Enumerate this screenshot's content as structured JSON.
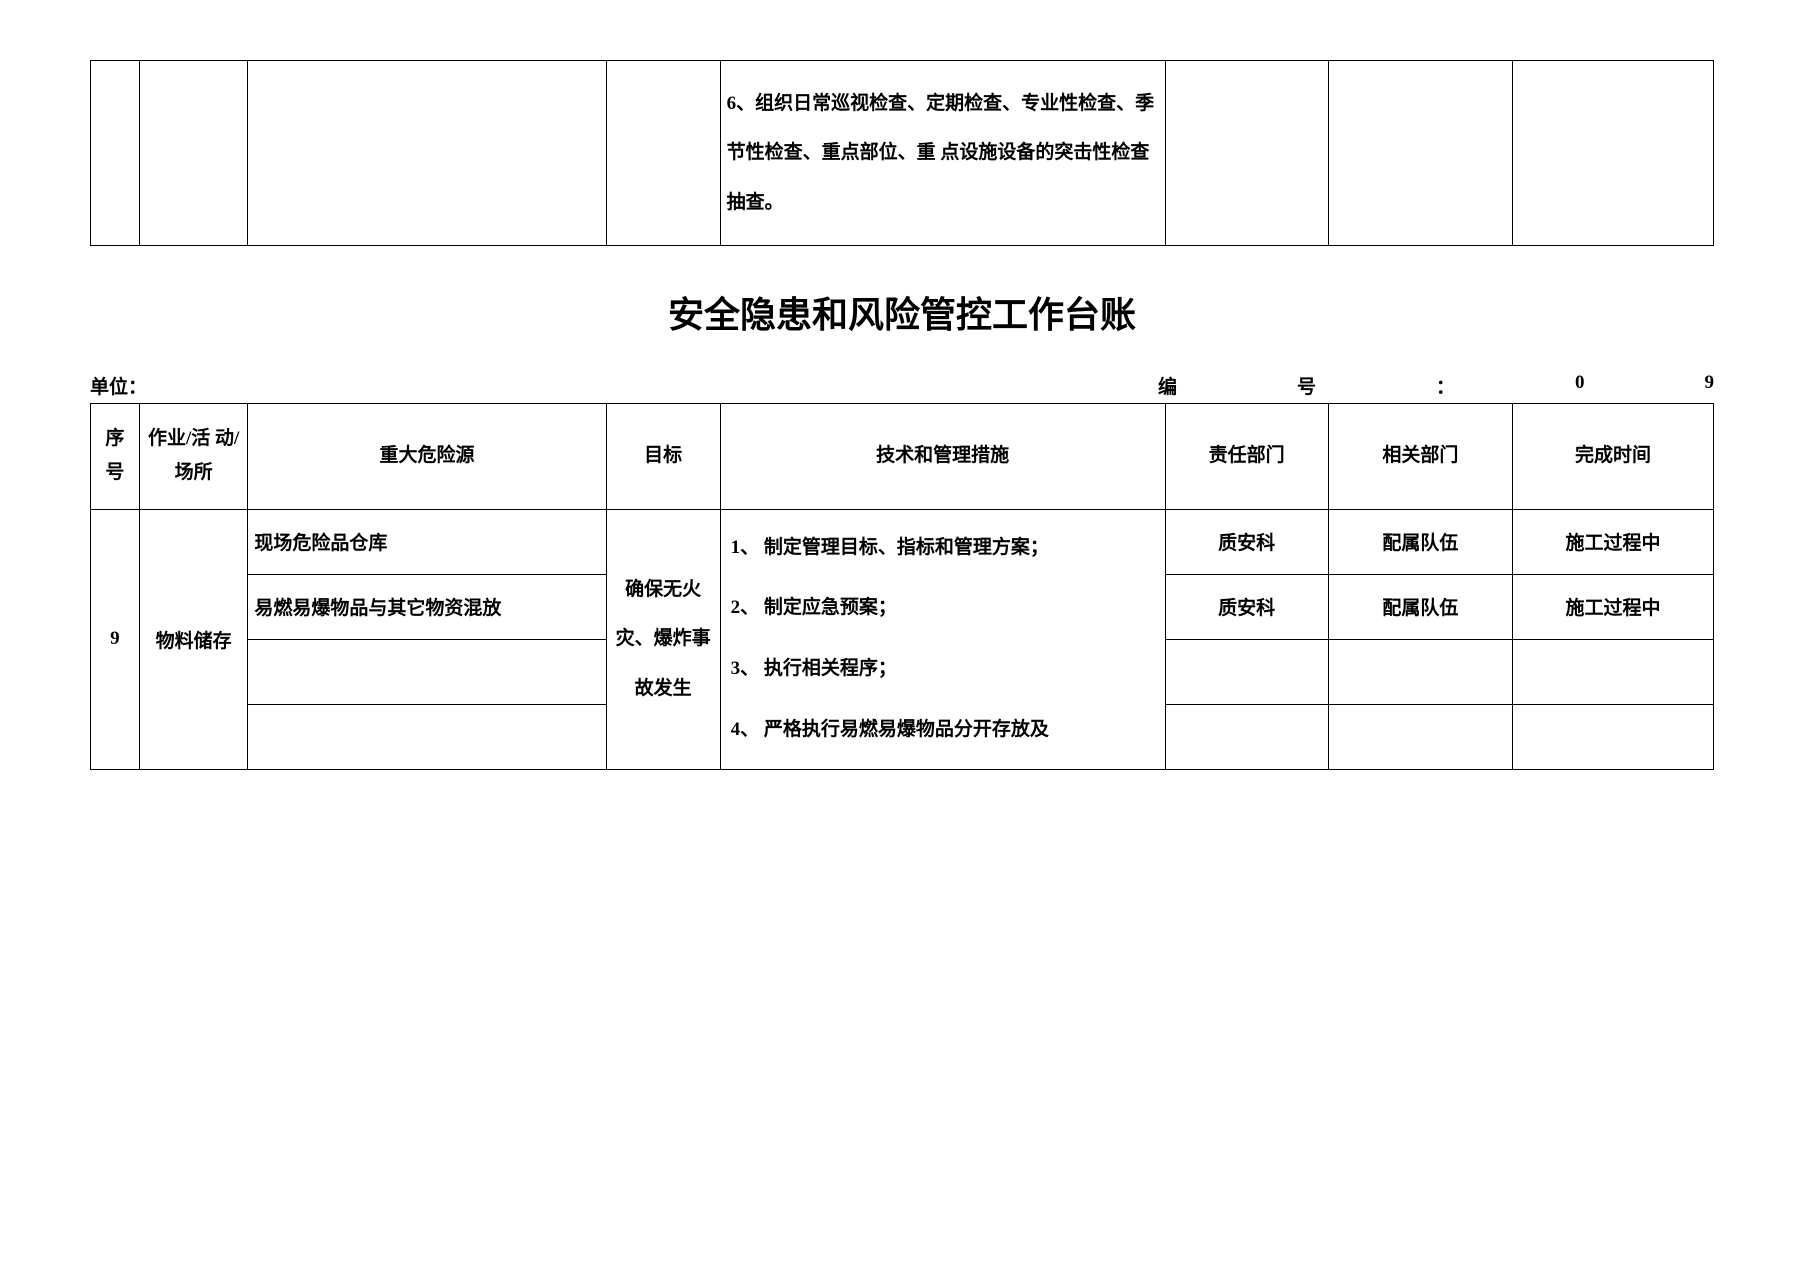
{
  "top_table": {
    "measure_text": "6、组织日常巡视检查、定期检查、专业性检查、季节性检查、重点部位、重 点设施设备的突击性检查抽查。"
  },
  "title": "安全隐患和风险管控工作台账",
  "meta": {
    "unit_label": "单位：",
    "serial_label_part1": "编",
    "serial_label_part2": "号",
    "colon": "：",
    "serial_value_part1": "0",
    "serial_value_part2": "9"
  },
  "headers": {
    "seq": "序号",
    "activity": "作业/活 动/场所",
    "hazard": "重大危险源",
    "goal": "目标",
    "measure": "技术和管理措施",
    "responsible": "责任部门",
    "related": "相关部门",
    "deadline": "完成时间"
  },
  "row": {
    "seq": "9",
    "activity": "物料储存",
    "hazards": [
      "现场危险品仓库",
      "易燃易爆物品与其它物资混放",
      "",
      ""
    ],
    "goal": "确保无火灾、爆炸事故发生",
    "measures": [
      "1、 制定管理目标、指标和管理方案；",
      "2、 制定应急预案；",
      "3、 执行相关程序；",
      "4、 严格执行易燃易爆物品分开存放及"
    ],
    "responsible": [
      "质安科",
      "质安科",
      "",
      ""
    ],
    "related": [
      "配属队伍",
      "配属队伍",
      "",
      ""
    ],
    "deadline": [
      "施工过程中",
      "施工过程中",
      "",
      ""
    ]
  },
  "style": {
    "text_color": "#000000",
    "border_color": "#000000",
    "background": "#ffffff",
    "title_fontsize": 36,
    "cell_fontsize": 19
  }
}
